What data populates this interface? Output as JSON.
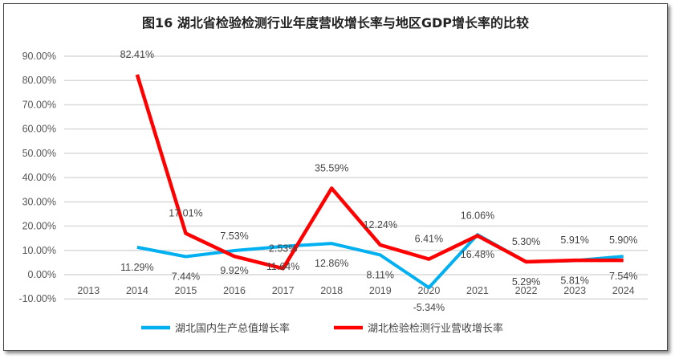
{
  "chart_data": {
    "type": "line",
    "title": "图16  湖北省检验检测行业年度营收增长率与地区GDP增长率的比较",
    "categories": [
      "2013",
      "2014",
      "2015",
      "2016",
      "2017",
      "2018",
      "2019",
      "2020",
      "2021",
      "2022",
      "2023",
      "2024"
    ],
    "ylim": [
      -10,
      90
    ],
    "yticks": [
      "-10.00%",
      "0.00%",
      "10.00%",
      "20.00%",
      "30.00%",
      "40.00%",
      "50.00%",
      "60.00%",
      "70.00%",
      "80.00%",
      "90.00%"
    ],
    "grid": true,
    "legend_position": "bottom",
    "series": [
      {
        "name": "湖北国内生产总值增长率",
        "color": "#00B0F0",
        "values": [
          null,
          11.29,
          7.44,
          9.92,
          11.64,
          12.86,
          8.11,
          -5.34,
          16.48,
          5.29,
          5.81,
          7.54
        ],
        "labels": [
          "",
          "11.29%",
          "7.44%",
          "9.92%",
          "11.64%",
          "12.86%",
          "8.11%",
          "-5.34%",
          "16.48%",
          "5.29%",
          "5.81%",
          "7.54%"
        ]
      },
      {
        "name": "湖北检验检测行业营收增长率",
        "color": "#FF0000",
        "values": [
          null,
          82.41,
          17.01,
          7.53,
          2.53,
          35.59,
          12.24,
          6.41,
          16.06,
          5.3,
          5.91,
          5.9
        ],
        "labels": [
          "",
          "82.41%",
          "17.01%",
          "7.53%",
          "2.53%",
          "35.59%",
          "12.24%",
          "6.41%",
          "16.06%",
          "5.30%",
          "5.91%",
          "5.90%"
        ]
      }
    ]
  }
}
